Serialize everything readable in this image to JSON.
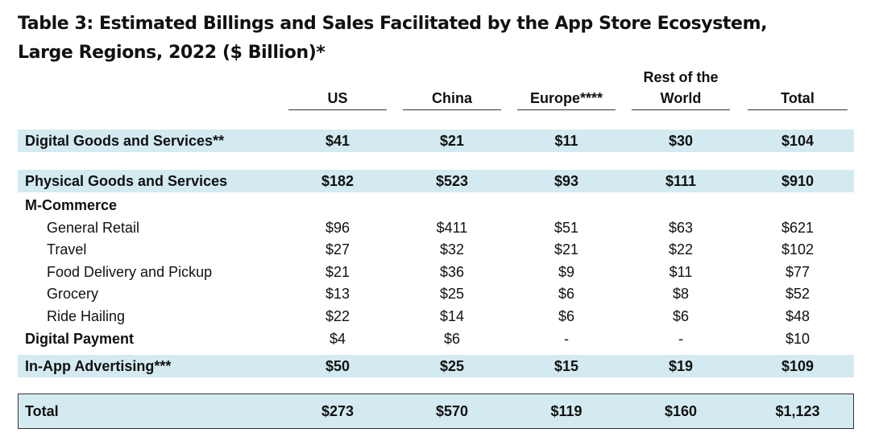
{
  "title": {
    "line1": "Table 3: Estimated Billings and Sales Facilitated by the App Store Ecosystem,",
    "line2": "Large Regions, 2022 ($ Billion)*"
  },
  "columns": {
    "us": "US",
    "china": "China",
    "europe": "Europe****",
    "rest_line1": "Rest of the",
    "rest_line2": "World",
    "total": "Total"
  },
  "rows": {
    "digital_goods": {
      "label": "Digital Goods and Services**",
      "us": "$41",
      "china": "$21",
      "europe": "$11",
      "rest": "$30",
      "total": "$104"
    },
    "physical_goods": {
      "label": "Physical Goods and Services",
      "us": "$182",
      "china": "$523",
      "europe": "$93",
      "rest": "$111",
      "total": "$910"
    },
    "m_commerce": {
      "label": "M-Commerce"
    },
    "general_retail": {
      "label": "General Retail",
      "us": "$96",
      "china": "$411",
      "europe": "$51",
      "rest": "$63",
      "total": "$621"
    },
    "travel": {
      "label": "Travel",
      "us": "$27",
      "china": "$32",
      "europe": "$21",
      "rest": "$22",
      "total": "$102"
    },
    "food_delivery": {
      "label": "Food Delivery and Pickup",
      "us": "$21",
      "china": "$36",
      "europe": "$9",
      "rest": "$11",
      "total": "$77"
    },
    "grocery": {
      "label": "Grocery",
      "us": "$13",
      "china": "$25",
      "europe": "$6",
      "rest": "$8",
      "total": "$52"
    },
    "ride_hailing": {
      "label": "Ride Hailing",
      "us": "$22",
      "china": "$14",
      "europe": "$6",
      "rest": "$6",
      "total": "$48"
    },
    "digital_payment": {
      "label": "Digital Payment",
      "us": "$4",
      "china": "$6",
      "europe": "-",
      "rest": "-",
      "total": "$10"
    },
    "in_app_ads": {
      "label": "In-App Advertising***",
      "us": "$50",
      "china": "$25",
      "europe": "$15",
      "rest": "$19",
      "total": "$109"
    },
    "grand_total": {
      "label": "Total",
      "us": "$273",
      "china": "$570",
      "europe": "$119",
      "rest": "$160",
      "total": "$1,123"
    }
  }
}
